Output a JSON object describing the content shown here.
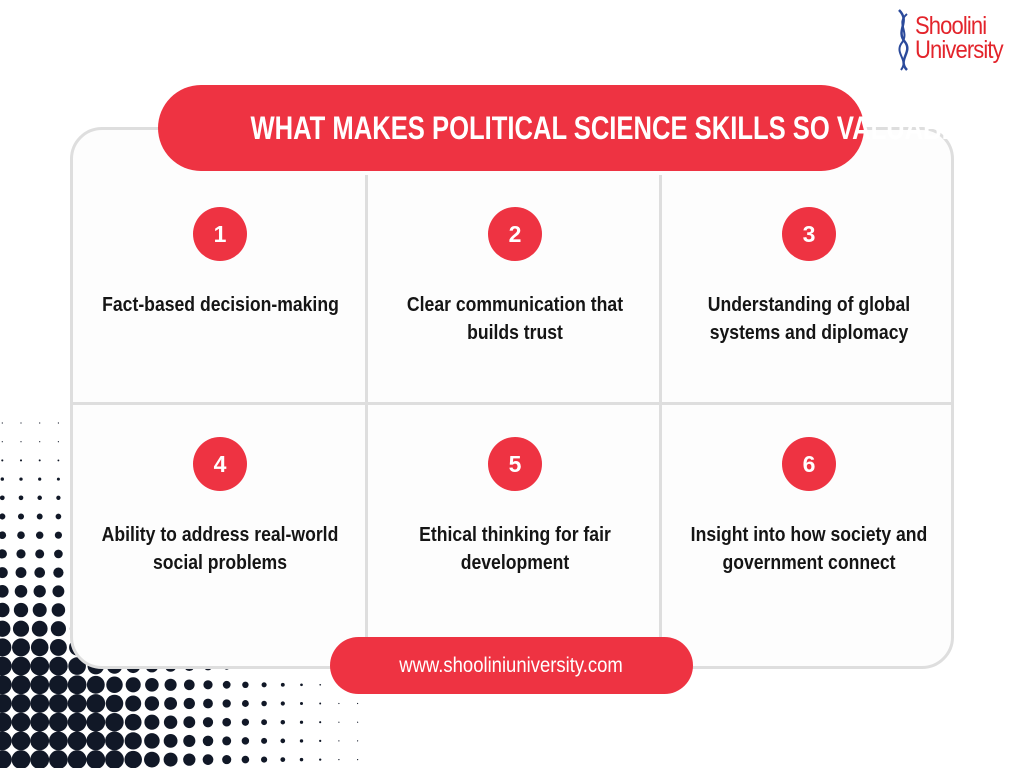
{
  "brand": {
    "logo_text_line1": "Shoolini",
    "logo_text_line2": "University",
    "accent_color": "#ee3342",
    "logo_color": "#e3242b",
    "helix_color": "#2b4a9b"
  },
  "title": "WHAT MAKES POLITICAL SCIENCE SKILLS SO VALUABLE?",
  "skills": [
    {
      "number": "1",
      "text": "Fact-based decision-making"
    },
    {
      "number": "2",
      "text": "Clear communication that builds trust"
    },
    {
      "number": "3",
      "text": "Understanding of global systems and diplomacy"
    },
    {
      "number": "4",
      "text": "Ability to address real-world social problems"
    },
    {
      "number": "5",
      "text": "Ethical thinking for fair development"
    },
    {
      "number": "6",
      "text": "Insight into how society and government connect"
    }
  ],
  "footer": {
    "url": "www.shooliniuniversity.com"
  }
}
